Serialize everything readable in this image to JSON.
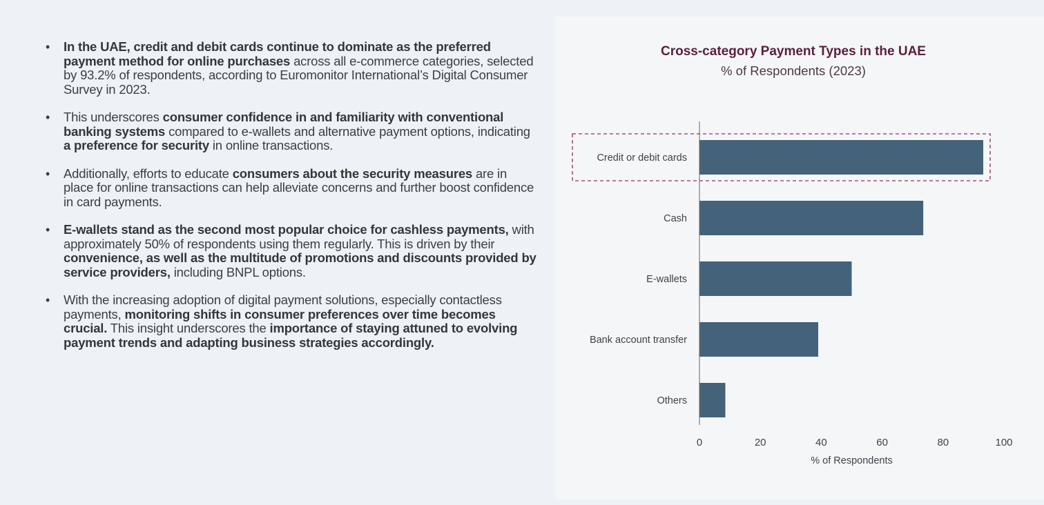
{
  "bullets": [
    {
      "segments": [
        {
          "text": "In the UAE, credit and debit cards continue to dominate as the preferred payment method for online purchases",
          "bold": true
        },
        {
          "text": " across all e-commerce categories, selected by 93.2% of respondents, according to Euromonitor International’s Digital Consumer Survey in 2023.",
          "bold": false
        }
      ]
    },
    {
      "segments": [
        {
          "text": "This underscores ",
          "bold": false
        },
        {
          "text": "consumer confidence in and familiarity with conventional banking systems",
          "bold": true
        },
        {
          "text": " compared to e-wallets and alternative payment options, indicating ",
          "bold": false
        },
        {
          "text": "a preference for security",
          "bold": true
        },
        {
          "text": " in online transactions.",
          "bold": false
        }
      ]
    },
    {
      "segments": [
        {
          "text": "Additionally, efforts to educate ",
          "bold": false
        },
        {
          "text": "consumers about the security measures",
          "bold": true
        },
        {
          "text": " are in place for online transactions can help alleviate concerns and further boost confidence in card payments.",
          "bold": false
        }
      ]
    },
    {
      "segments": [
        {
          "text": "E-wallets stand as the second most popular choice for cashless payments,",
          "bold": true
        },
        {
          "text": " with approximately 50% of respondents using them regularly. This is driven by their ",
          "bold": false
        },
        {
          "text": "convenience, as well as the multitude of promotions and discounts provided by service providers,",
          "bold": true
        },
        {
          "text": " including BNPL options.",
          "bold": false
        }
      ]
    },
    {
      "segments": [
        {
          "text": "With the increasing adoption of digital payment solutions, especially contactless payments, ",
          "bold": false
        },
        {
          "text": "monitoring shifts in consumer preferences over time becomes crucial.",
          "bold": true
        },
        {
          "text": " This insight underscores the ",
          "bold": false
        },
        {
          "text": "importance of staying attuned to evolving payment trends and adapting business strategies accordingly.",
          "bold": true
        }
      ]
    }
  ],
  "colors": {
    "bar": "#44627a",
    "highlight": "#a0507a",
    "title": "#5b1f3c"
  },
  "chart_data": {
    "type": "bar",
    "orientation": "horizontal",
    "title": "Cross-category Payment Types in the UAE",
    "subtitle": "% of Respondents (2023)",
    "categories": [
      "Credit or debit cards",
      "Cash",
      "E-wallets",
      "Bank account transfer",
      "Others"
    ],
    "values": [
      93.2,
      73.5,
      50,
      39,
      8.5
    ],
    "xlabel": "% of Respondents",
    "ylabel": "",
    "xlim": [
      0,
      100
    ],
    "xticks": [
      "0",
      "20",
      "40",
      "60",
      "80",
      "100"
    ],
    "grid": false,
    "highlighted_category": "Credit or debit cards"
  }
}
